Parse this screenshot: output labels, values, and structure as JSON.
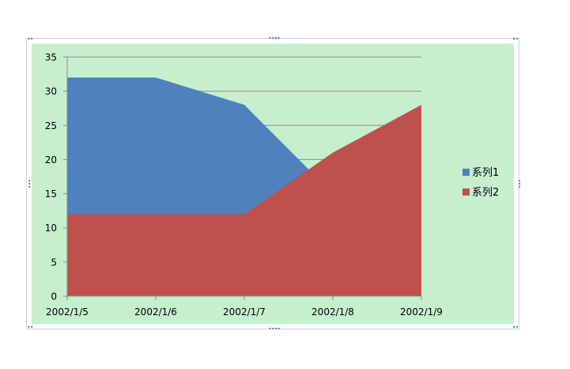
{
  "chart_data": {
    "type": "area",
    "stacked": false,
    "categories": [
      "2002/1/5",
      "2002/1/6",
      "2002/1/7",
      "2002/1/8",
      "2002/1/9"
    ],
    "series": [
      {
        "name": "系列1",
        "values": [
          32,
          32,
          28,
          15,
          12
        ],
        "color": "#4f81bd"
      },
      {
        "name": "系列2",
        "values": [
          12,
          12,
          12,
          21,
          28
        ],
        "color": "#c0504d"
      }
    ],
    "yticks": [
      "0",
      "5",
      "10",
      "15",
      "20",
      "25",
      "30",
      "35"
    ],
    "ylim": [
      0,
      35
    ],
    "grid": true,
    "legend_position": "right",
    "plot_background": "#c6efce"
  }
}
